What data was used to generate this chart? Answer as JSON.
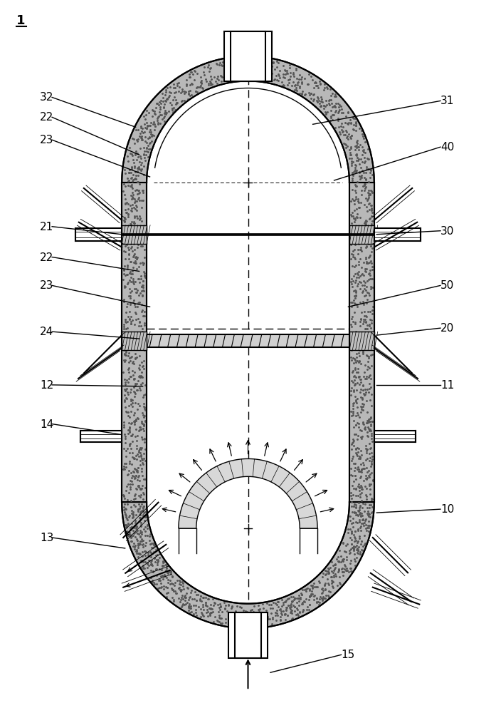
{
  "fig_width": 6.97,
  "fig_height": 10.0,
  "dpi": 100,
  "bg_color": "#ffffff",
  "line_color": "#000000",
  "label_fontsize": 11,
  "title_label": "1",
  "labels_left": [
    [
      "32",
      55,
      860,
      190,
      823
    ],
    [
      "22",
      55,
      832,
      195,
      784
    ],
    [
      "23",
      55,
      800,
      210,
      753
    ],
    [
      "21",
      55,
      678,
      170,
      672
    ],
    [
      "22",
      55,
      635,
      195,
      620
    ],
    [
      "23",
      55,
      595,
      210,
      570
    ],
    [
      "24",
      55,
      530,
      195,
      525
    ]
  ],
  "labels_right": [
    [
      "31",
      620,
      855,
      440,
      827
    ],
    [
      "40",
      620,
      790,
      470,
      748
    ],
    [
      "30",
      620,
      672,
      530,
      672
    ],
    [
      "50",
      620,
      595,
      490,
      570
    ],
    [
      "20",
      620,
      535,
      530,
      530
    ],
    [
      "11",
      620,
      455,
      530,
      460
    ],
    [
      "10",
      620,
      280,
      530,
      280
    ]
  ],
  "labels_bot_l": [
    [
      "12",
      55,
      455,
      200,
      458
    ],
    [
      "14",
      55,
      400,
      170,
      390
    ],
    [
      "13",
      55,
      240,
      175,
      230
    ]
  ],
  "label_15": [
    "15",
    480,
    75,
    380,
    55
  ]
}
